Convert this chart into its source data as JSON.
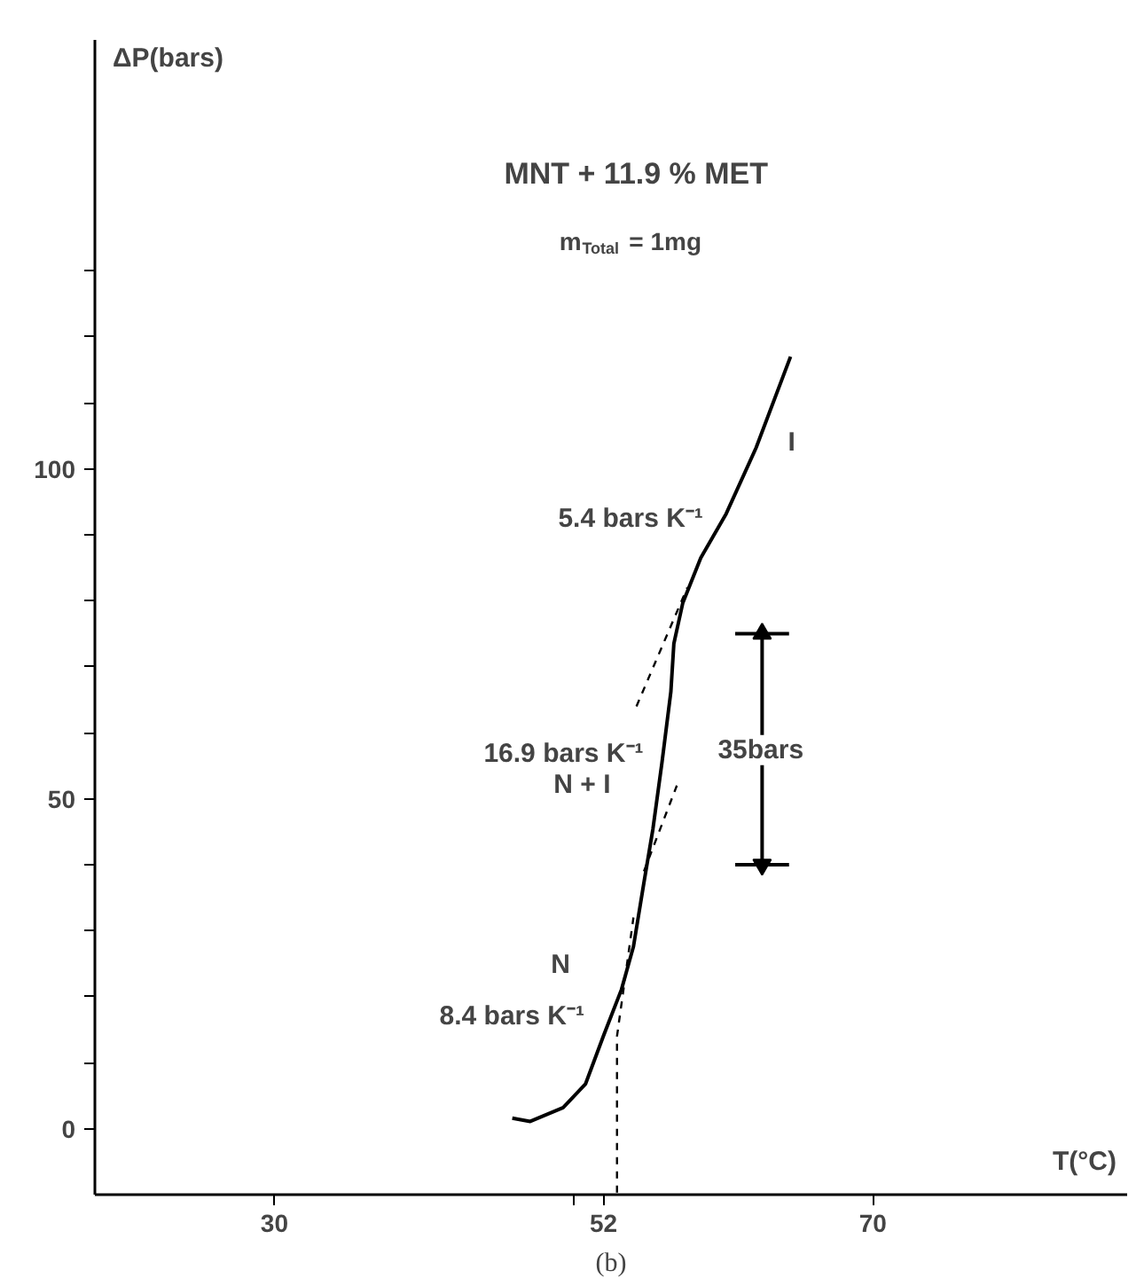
{
  "chart_data": {
    "type": "line",
    "title": "MNT + 11.9 % MET",
    "subtitle": "m$_{Total}$ = 1mg",
    "xlabel": "T(°C)",
    "ylabel": "ΔP(bars)",
    "xlim": [
      18,
      87
    ],
    "ylim": [
      -10,
      165
    ],
    "xticks": [
      30,
      {
        "value": 50,
        "label": null
      },
      52,
      70
    ],
    "yticks": [
      0,
      {
        "value": 10,
        "label": null
      },
      {
        "value": 20,
        "label": null
      },
      {
        "value": 30,
        "label": null
      },
      {
        "value": 40,
        "label": null
      },
      50,
      {
        "value": 60,
        "label": null
      },
      {
        "value": 70,
        "label": null
      },
      {
        "value": 80,
        "label": null
      },
      {
        "value": 90,
        "label": null
      },
      100,
      {
        "value": 110,
        "label": null
      },
      {
        "value": 120,
        "label": null
      },
      {
        "value": 130,
        "label": null
      }
    ],
    "series": [
      {
        "color": "#000000",
        "line_style": "solid",
        "x": [
          45.9,
          47.1,
          49.3,
          50.8,
          52.0,
          53.2,
          54.0,
          54.7,
          55.3,
          55.9,
          56.5,
          56.7,
          57.3,
          58.5,
          60.2,
          62.2,
          64.5
        ],
        "values": [
          1.6,
          1.1,
          3.2,
          6.8,
          14.1,
          21.1,
          27.6,
          37.3,
          45.4,
          55.4,
          66.2,
          73.5,
          79.7,
          86.5,
          93.2,
          103.2,
          117.0
        ]
      },
      {
        "color": "#000000",
        "line_style": "dashed",
        "x": [
          52.9,
          52.9,
          54.0
        ],
        "values": [
          -9.7,
          14,
          32
        ]
      },
      {
        "color": "#000000",
        "line_style": "dashed",
        "x": [
          54.7,
          56.9
        ],
        "values": [
          39,
          52
        ]
      },
      {
        "color": "#000000",
        "line_style": "dashed",
        "x": [
          54.2,
          57.6
        ],
        "values": [
          64,
          82
        ]
      },
      {
        "color": "#000000",
        "line_style": "solid",
        "x": [
          60.8,
          64.4
        ],
        "values": [
          75,
          75
        ]
      },
      {
        "color": "#000000",
        "line_style": "solid",
        "marker": "triangle",
        "x": [
          62.6,
          62.6
        ],
        "values": [
          75,
          40
        ]
      },
      {
        "color": "#000000",
        "line_style": "solid",
        "x": [
          60.8,
          64.4
        ],
        "values": [
          40,
          40
        ]
      }
    ],
    "annotations": [
      "I",
      "5.4 bars K⁻¹",
      "16.9 bars K⁻¹",
      "N + I",
      "N",
      "8.4 bars K⁻¹",
      "35bars",
      "(b)"
    ],
    "grid": false
  }
}
